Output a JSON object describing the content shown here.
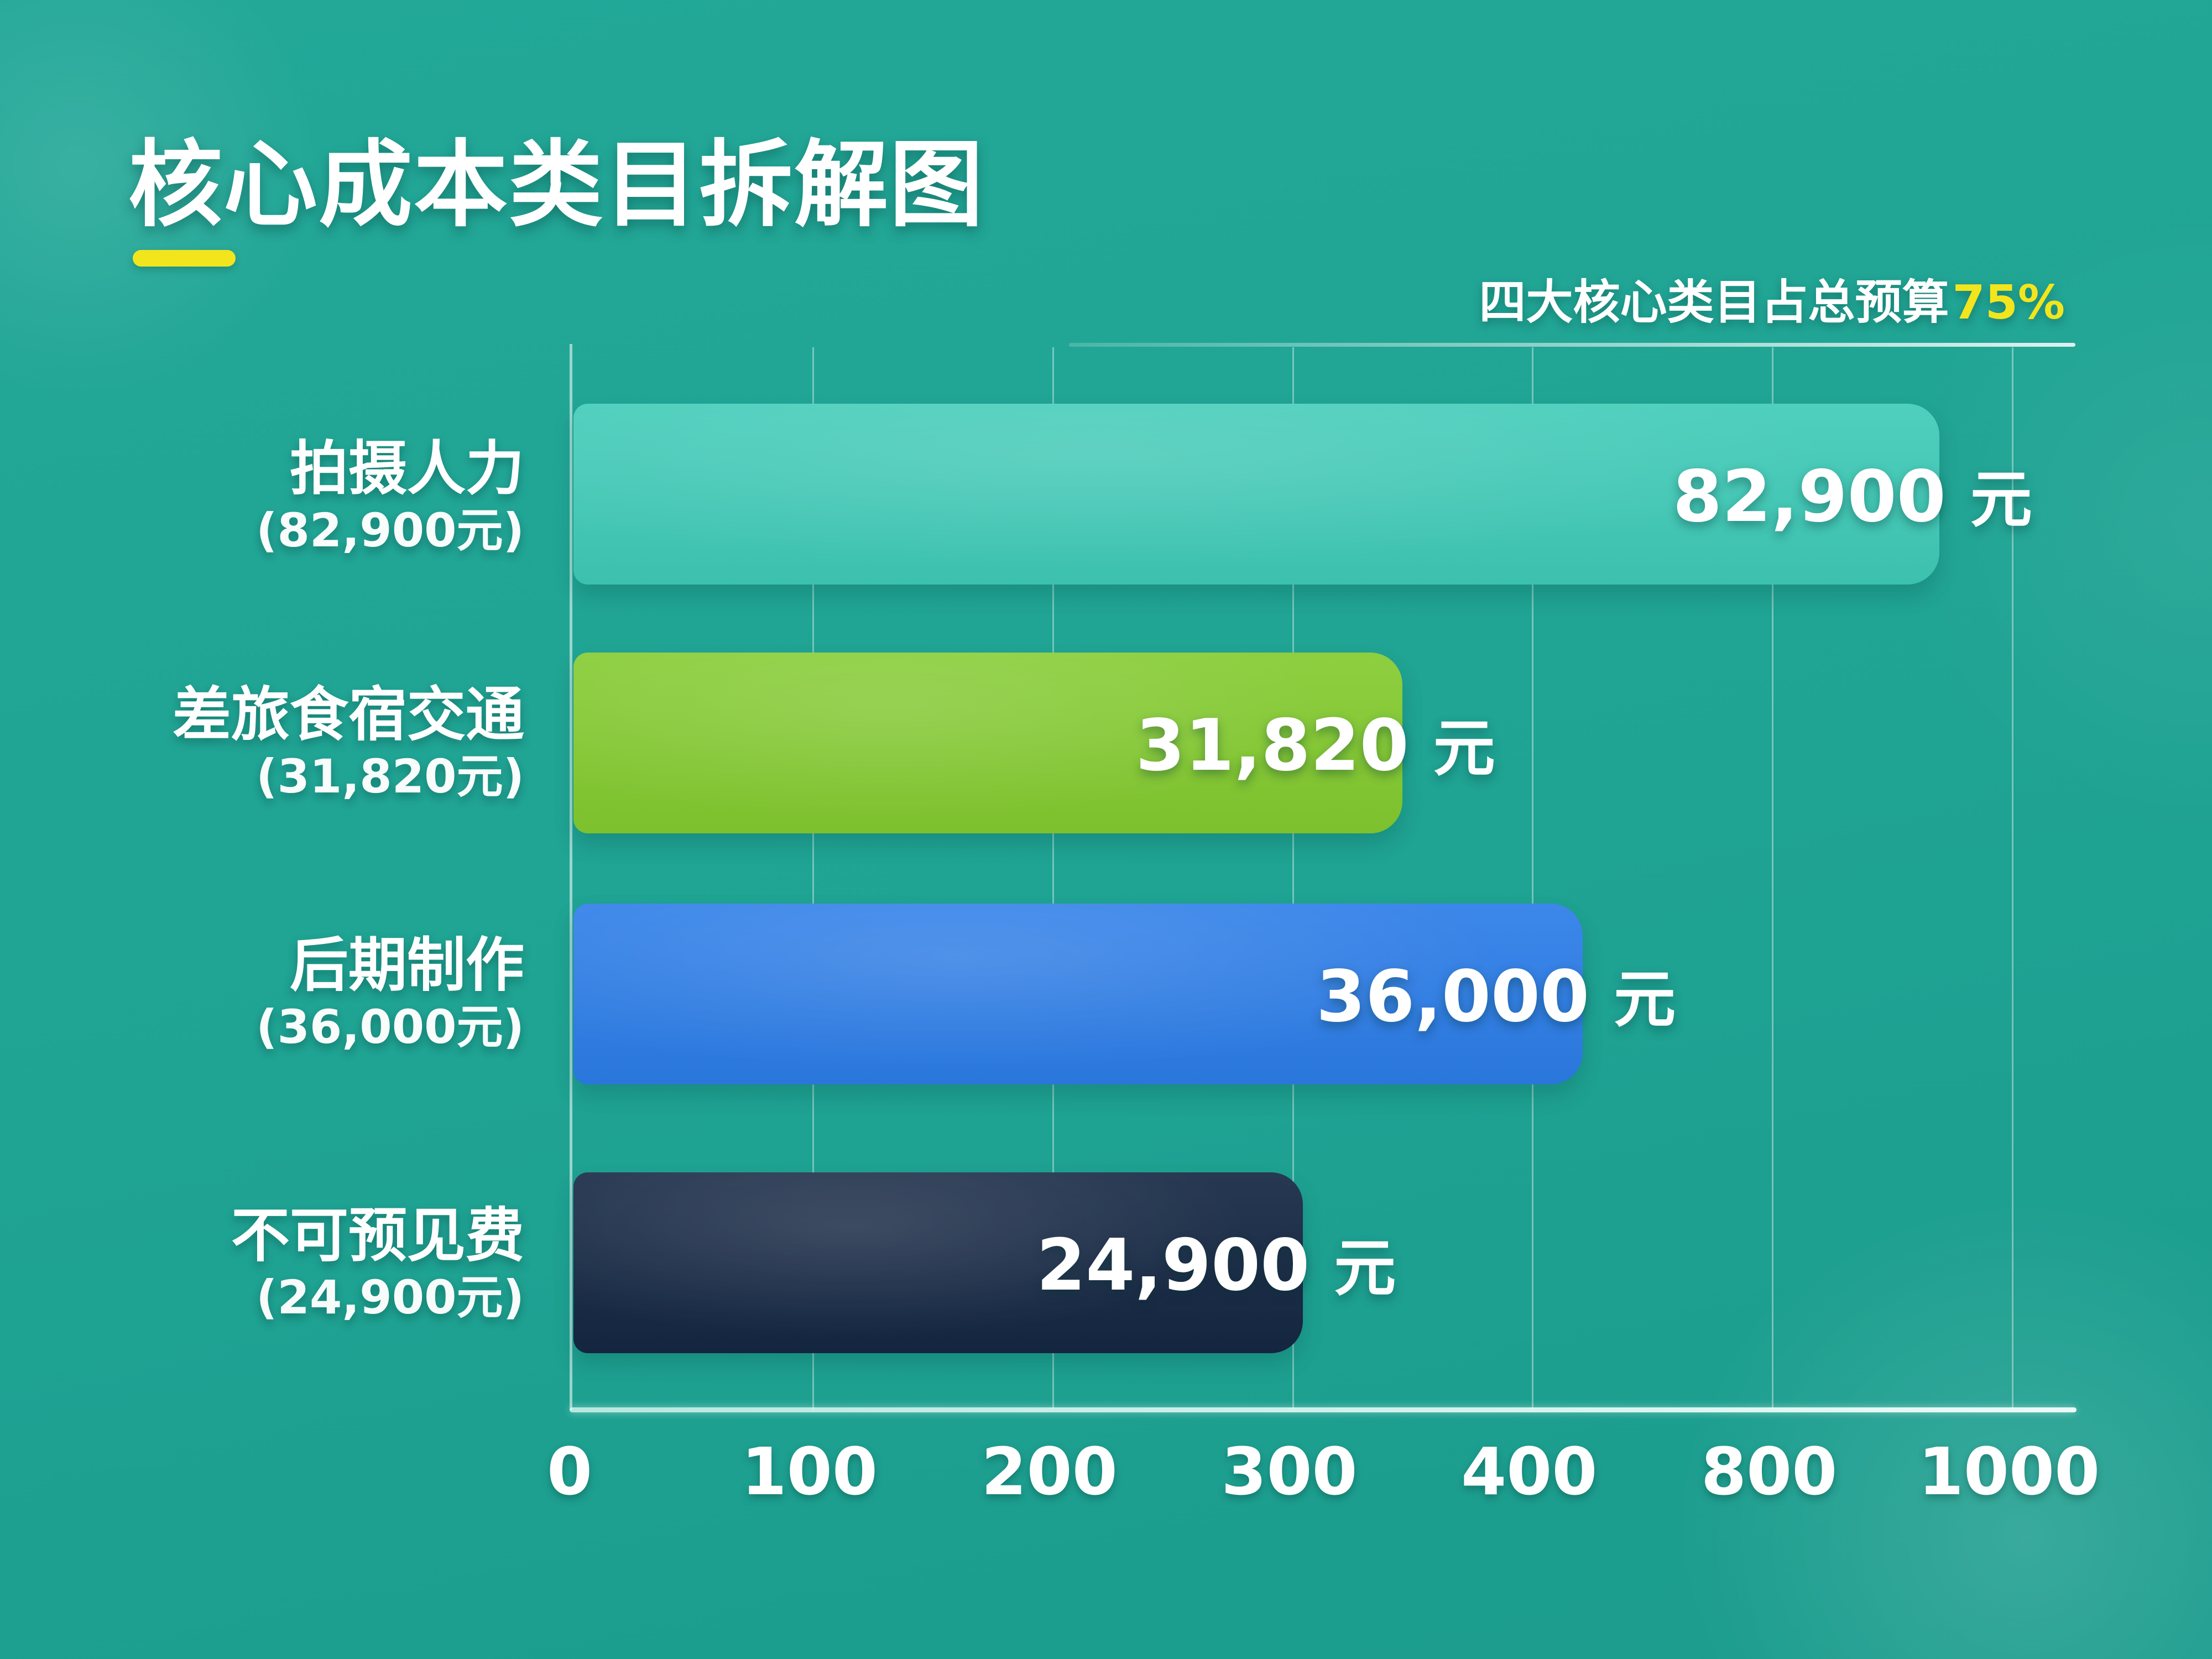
{
  "title": "核心成本类目拆解图",
  "subtitle": {
    "text": "四大核心类目占总预算",
    "highlight": "75%"
  },
  "colors": {
    "background": "#1fa495",
    "accent_yellow": "#f2e51d",
    "bar_teal": "#40cbb8",
    "bar_green": "#84cb30",
    "bar_blue": "#2c7de8",
    "bar_navy": "#152743",
    "text": "#ffffff"
  },
  "chart_data": {
    "type": "bar",
    "orientation": "horizontal",
    "title": "核心成本类目拆解图",
    "annotation": "四大核心类目占总预算75%",
    "categories": [
      "拍摄人力",
      "差旅食宿交通",
      "后期制作",
      "不可预见费"
    ],
    "values": [
      82900,
      31820,
      36000,
      24900
    ],
    "unit": "元",
    "x_tick_labels": [
      "0",
      "100",
      "200",
      "300",
      "400",
      "800",
      "1000"
    ],
    "gridlines": true,
    "legend": false,
    "bars": [
      {
        "name": "拍摄人力",
        "amount_label": "(82,900元)",
        "value_label": "82,900",
        "unit": "元",
        "color": "#40cbb8",
        "length_pct": 90.8
      },
      {
        "name": "差旅食宿交通",
        "amount_label": "(31,820元)",
        "value_label": "31,820",
        "unit": "元",
        "color": "#84cb30",
        "length_pct": 55.1
      },
      {
        "name": "后期制作",
        "amount_label": "(36,000元)",
        "value_label": "36,000",
        "unit": "元",
        "color": "#2c7de8",
        "length_pct": 67.1
      },
      {
        "name": "不可预见费",
        "amount_label": "(24,900元)",
        "value_label": "24,900",
        "unit": "元",
        "color": "#152743",
        "length_pct": 48.5
      }
    ]
  }
}
